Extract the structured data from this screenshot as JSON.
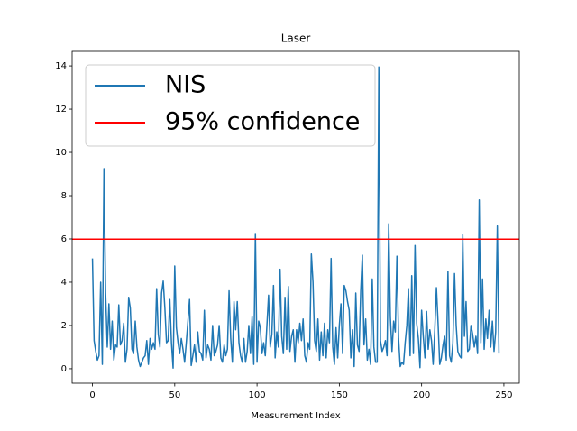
{
  "chart_data": {
    "type": "line",
    "title": "Laser",
    "x_label": "Measurement Index",
    "series": [
      {
        "name": "NIS",
        "color": "#1f77b4",
        "values": [
          5.1,
          1.3,
          0.8,
          0.4,
          0.6,
          4.0,
          0.2,
          9.25,
          3.5,
          1.0,
          3.0,
          0.9,
          2.2,
          0.4,
          1.1,
          1.0,
          2.95,
          1.1,
          1.3,
          2.1,
          0.3,
          0.9,
          3.3,
          2.8,
          0.9,
          0.7,
          2.2,
          1.0,
          0.4,
          0.1,
          0.3,
          0.5,
          0.6,
          1.3,
          0.2,
          1.4,
          0.9,
          1.2,
          0.9,
          3.7,
          1.6,
          1.0,
          3.5,
          4.05,
          2.8,
          1.2,
          1.3,
          3.2,
          1.2,
          0.03,
          4.75,
          1.9,
          1.2,
          0.7,
          1.4,
          0.9,
          0.3,
          1.2,
          2.2,
          3.2,
          0.15,
          0.6,
          1.1,
          0.3,
          1.7,
          0.8,
          0.7,
          0.4,
          2.7,
          0.5,
          1.1,
          0.9,
          0.4,
          2.0,
          0.6,
          0.8,
          1.1,
          2.0,
          0.5,
          0.3,
          1.1,
          0.6,
          0.9,
          3.6,
          1.4,
          0.3,
          3.1,
          1.8,
          3.1,
          1.2,
          0.6,
          0.3,
          1.4,
          0.3,
          0.8,
          2.0,
          0.7,
          2.4,
          0.2,
          6.25,
          0.3,
          2.2,
          1.9,
          0.7,
          1.2,
          0.6,
          2.0,
          3.4,
          1.0,
          1.6,
          3.85,
          0.5,
          1.7,
          1.0,
          4.6,
          1.5,
          0.7,
          3.3,
          0.9,
          3.8,
          0.8,
          1.5,
          1.8,
          0.3,
          1.8,
          1.2,
          2.1,
          1.3,
          2.3,
          0.6,
          0.3,
          1.2,
          0.9,
          5.3,
          4.0,
          1.3,
          0.8,
          2.3,
          0.4,
          1.7,
          0.6,
          2.1,
          0.5,
          1.8,
          1.2,
          5.1,
          1.0,
          0.2,
          1.9,
          0.5,
          2.0,
          3.0,
          0.7,
          3.85,
          3.6,
          3.1,
          2.7,
          0.5,
          1.8,
          0.1,
          3.5,
          1.1,
          0.8,
          3.6,
          5.25,
          1.1,
          2.3,
          0.4,
          0.9,
          0.2,
          4.15,
          1.0,
          0.3,
          0.3,
          13.95,
          1.3,
          0.8,
          1.0,
          1.3,
          0.6,
          6.7,
          2.4,
          0.8,
          2.2,
          1.7,
          5.2,
          1.4,
          0.1,
          0.3,
          0.2,
          1.2,
          2.0,
          3.7,
          0.6,
          4.3,
          0.7,
          5.7,
          2.1,
          1.4,
          0.05,
          2.7,
          1.5,
          0.5,
          2.65,
          0.9,
          1.8,
          1.3,
          0.2,
          1.8,
          3.75,
          2.1,
          0.2,
          0.5,
          1.1,
          1.5,
          0.4,
          4.5,
          0.6,
          0.3,
          1.2,
          4.4,
          2.0,
          0.8,
          0.6,
          0.5,
          6.2,
          1.5,
          3.1,
          0.8,
          0.9,
          2.0,
          1.6,
          1.0,
          1.5,
          0.7,
          7.8,
          1.2,
          4.15,
          0.9,
          2.3,
          1.4,
          2.7,
          1.0,
          2.2,
          0.8,
          1.7,
          6.6,
          0.7
        ]
      }
    ],
    "reference_line": {
      "name": "95% confidence",
      "value": 5.991,
      "color": "#ff0000"
    },
    "xlim": [
      -12.35,
      259.35
    ],
    "xticks": [
      0,
      50,
      100,
      150,
      200,
      250
    ],
    "ylim": [
      -0.67,
      14.67
    ],
    "yticks": [
      0,
      2,
      4,
      6,
      8,
      10,
      12,
      14
    ],
    "legend": "upper left"
  }
}
